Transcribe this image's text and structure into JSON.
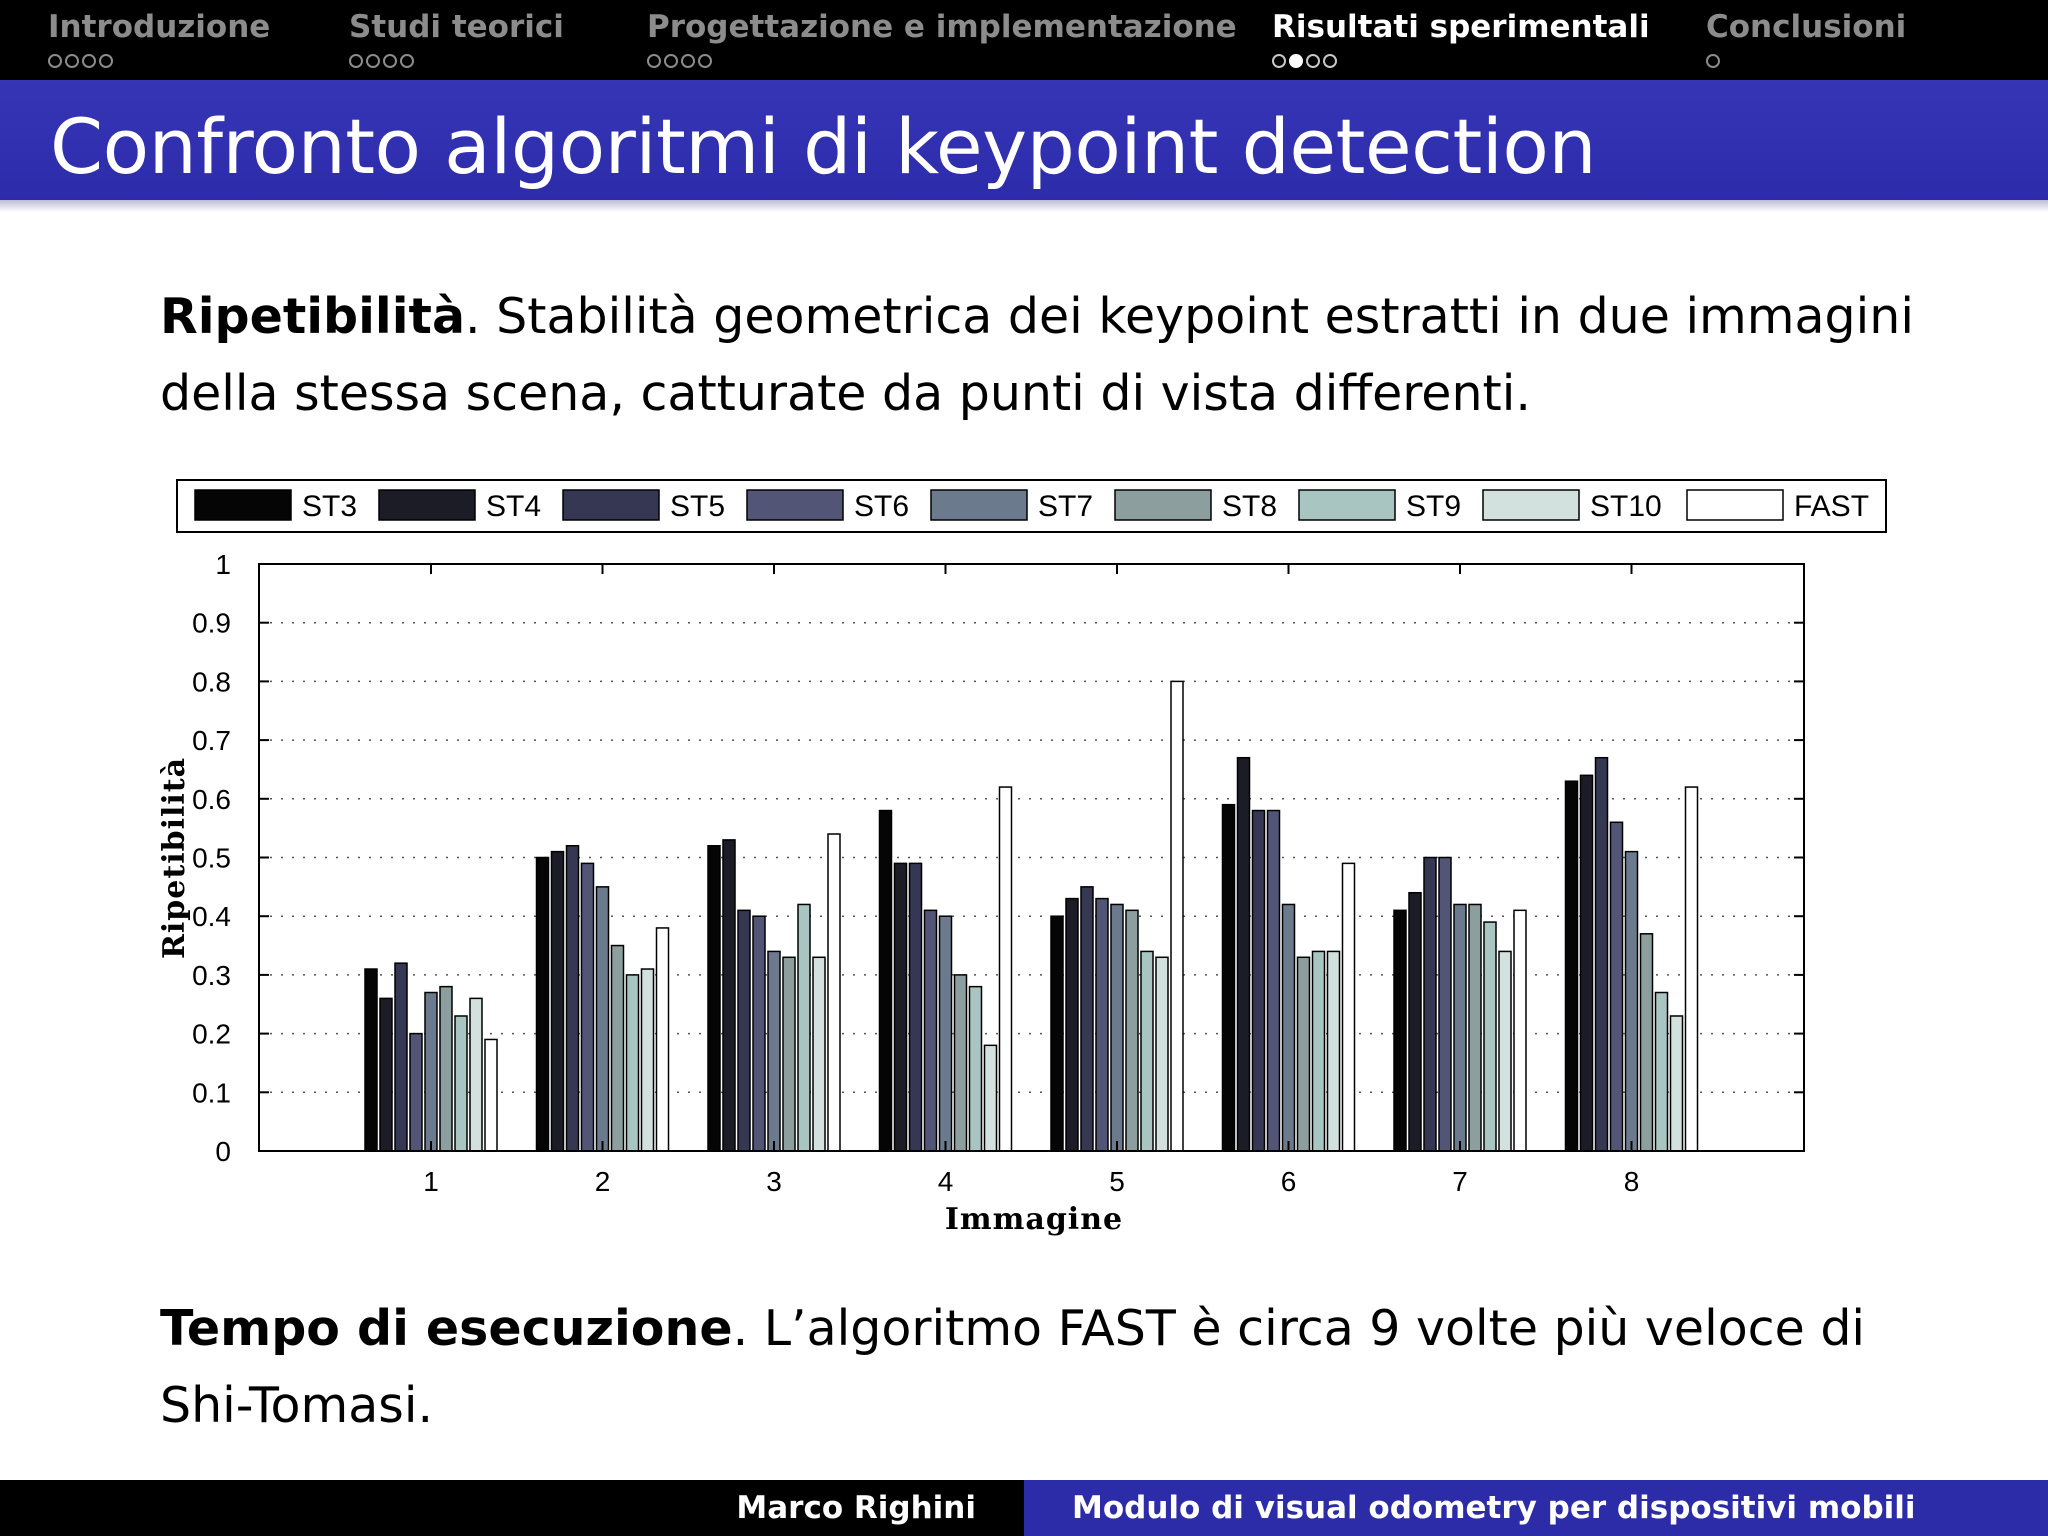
{
  "nav": {
    "sections": [
      {
        "label": "Introduzione",
        "dots": 4,
        "filled": -1,
        "active": false
      },
      {
        "label": "Studi teorici",
        "dots": 4,
        "filled": -1,
        "active": false
      },
      {
        "label": "Progettazione e implementazione",
        "dots": 4,
        "filled": -1,
        "active": false
      },
      {
        "label": "Risultati sperimentali",
        "dots": 4,
        "filled": 1,
        "active": true
      },
      {
        "label": "Conclusioni",
        "dots": 1,
        "filled": -1,
        "active": false
      }
    ]
  },
  "slide": {
    "title": "Confronto algoritmi di keypoint detection",
    "p1": {
      "bold": "Ripetibilità",
      "text": ". Stabilità geometrica dei keypoint estratti in due immagini della stessa scena, catturate da punti di vista differenti."
    },
    "p2": {
      "bold": "Tempo di esecuzione",
      "text": ". L’algoritmo FAST è circa 9 volte più veloce di Shi-Tomasi."
    }
  },
  "footer": {
    "author": "Marco Righini",
    "talk": "Modulo di visual odometry per dispositivi mobili"
  },
  "chart_data": {
    "type": "bar",
    "xlabel": "Immagine",
    "ylabel": "Ripetibilità",
    "ylim": [
      0,
      1
    ],
    "yticks": [
      "0",
      "0.1",
      "0.2",
      "0.3",
      "0.4",
      "0.5",
      "0.6",
      "0.7",
      "0.8",
      "0.9",
      "1"
    ],
    "categories": [
      "1",
      "2",
      "3",
      "4",
      "5",
      "6",
      "7",
      "8"
    ],
    "grid": "y-dotted",
    "legend_position": "top",
    "series": [
      {
        "name": "ST3",
        "color": "#050505",
        "values": [
          0.31,
          0.5,
          0.52,
          0.58,
          0.4,
          0.59,
          0.41,
          0.63
        ]
      },
      {
        "name": "ST4",
        "color": "#1c1c26",
        "values": [
          0.26,
          0.51,
          0.53,
          0.49,
          0.43,
          0.67,
          0.44,
          0.64
        ]
      },
      {
        "name": "ST5",
        "color": "#363752",
        "values": [
          0.32,
          0.52,
          0.41,
          0.49,
          0.45,
          0.58,
          0.5,
          0.67
        ]
      },
      {
        "name": "ST6",
        "color": "#535577",
        "values": [
          0.2,
          0.49,
          0.4,
          0.41,
          0.43,
          0.58,
          0.5,
          0.56
        ]
      },
      {
        "name": "ST7",
        "color": "#6c7a8e",
        "values": [
          0.27,
          0.45,
          0.34,
          0.4,
          0.42,
          0.42,
          0.42,
          0.51
        ]
      },
      {
        "name": "ST8",
        "color": "#8c9e9e",
        "values": [
          0.28,
          0.35,
          0.33,
          0.3,
          0.41,
          0.33,
          0.42,
          0.37
        ]
      },
      {
        "name": "ST9",
        "color": "#a9c5c1",
        "values": [
          0.23,
          0.3,
          0.42,
          0.28,
          0.34,
          0.34,
          0.39,
          0.27
        ]
      },
      {
        "name": "ST10",
        "color": "#d3e1de",
        "values": [
          0.26,
          0.31,
          0.33,
          0.18,
          0.33,
          0.34,
          0.34,
          0.23
        ]
      },
      {
        "name": "FAST",
        "color": "#ffffff",
        "values": [
          0.19,
          0.38,
          0.54,
          0.62,
          0.8,
          0.49,
          0.41,
          0.62
        ]
      }
    ]
  }
}
